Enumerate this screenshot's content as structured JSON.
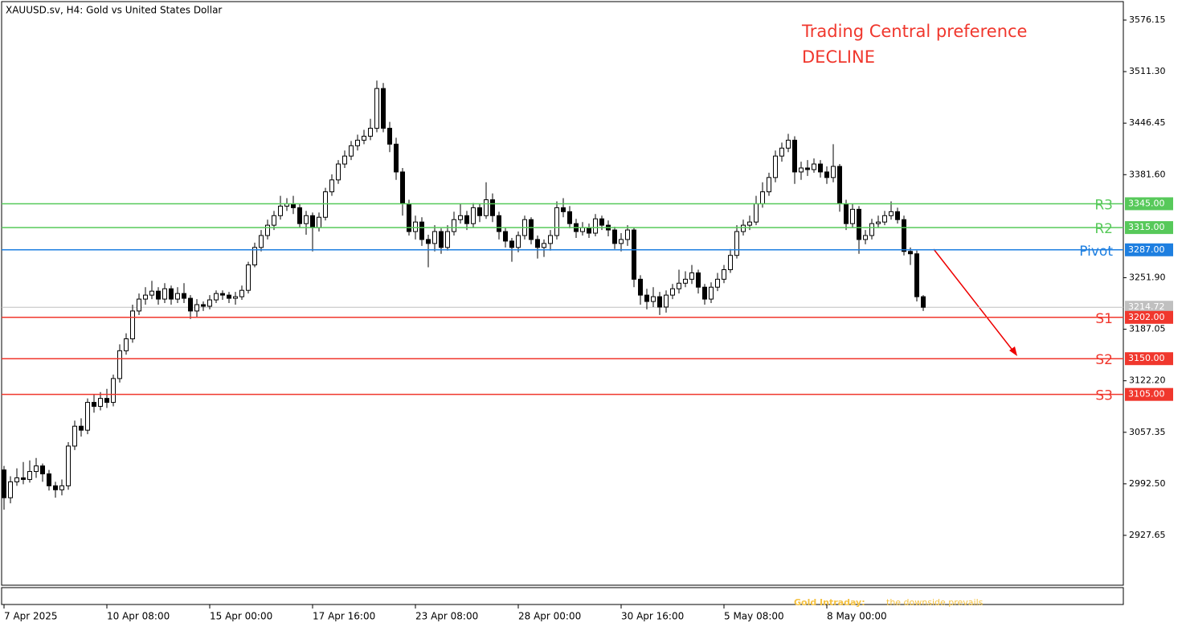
{
  "chart_data": {
    "type": "candlestick",
    "title": "XAUUSD.sv, H4:  Gold vs United States Dollar",
    "annotations": [
      "Trading Central preference",
      "DECLINE"
    ],
    "footer": [
      "Gold Intraday:",
      "the downside prevails"
    ],
    "categories": [
      "7 Apr 2025",
      null,
      null,
      null,
      null,
      null,
      null,
      null,
      null,
      null,
      null,
      null,
      null,
      null,
      null,
      null,
      "10 Apr 08:00",
      null,
      null,
      null,
      null,
      null,
      null,
      null,
      null,
      null,
      null,
      null,
      null,
      null,
      null,
      null,
      "15 Apr 00:00",
      null,
      null,
      null,
      null,
      null,
      null,
      null,
      null,
      null,
      null,
      null,
      null,
      null,
      null,
      null,
      "17 Apr 16:00",
      null,
      null,
      null,
      null,
      null,
      null,
      null,
      null,
      null,
      null,
      null,
      null,
      null,
      null,
      null,
      "23 Apr 08:00",
      null,
      null,
      null,
      null,
      null,
      null,
      null,
      null,
      null,
      null,
      null,
      null,
      null,
      null,
      null,
      "28 Apr 00:00",
      null,
      null,
      null,
      null,
      null,
      null,
      null,
      null,
      null,
      null,
      null,
      null,
      null,
      null,
      null,
      "30 Apr 16:00",
      null,
      null,
      null,
      null,
      null,
      null,
      null,
      null,
      null,
      null,
      null,
      null,
      null,
      null,
      null,
      "5 May 08:00",
      null,
      null,
      null,
      null,
      null,
      null,
      null,
      null,
      null,
      null,
      null,
      null,
      null,
      null,
      null,
      "8 May 00:00",
      null,
      null,
      null,
      null,
      null,
      null,
      null,
      null,
      null,
      null,
      null,
      null,
      null,
      null,
      null
    ],
    "open": [
      3010,
      2975,
      2995,
      3000,
      2998,
      3008,
      3015,
      3005,
      2990,
      2985,
      2990,
      3040,
      3065,
      3060,
      3095,
      3090,
      3100,
      3095,
      3125,
      3160,
      3175,
      3210,
      3225,
      3230,
      3235,
      3225,
      3238,
      3225,
      3232,
      3226,
      3210,
      3218,
      3216,
      3224,
      3232,
      3230,
      3226,
      3228,
      3236,
      3268,
      3290,
      3305,
      3318,
      3330,
      3342,
      3345,
      3340,
      3320,
      3330,
      3315,
      3328,
      3360,
      3375,
      3395,
      3405,
      3418,
      3425,
      3430,
      3440,
      3490,
      3440,
      3420,
      3385,
      3345,
      3310,
      3322,
      3300,
      3295,
      3310,
      3290,
      3310,
      3325,
      3330,
      3320,
      3340,
      3330,
      3350,
      3330,
      3310,
      3298,
      3290,
      3305,
      3325,
      3300,
      3290,
      3295,
      3305,
      3340,
      3335,
      3320,
      3310,
      3315,
      3308,
      3326,
      3318,
      3312,
      3295,
      3300,
      3312,
      3250,
      3230,
      3222,
      3228,
      3215,
      3230,
      3238,
      3245,
      3250,
      3258,
      3240,
      3225,
      3240,
      3250,
      3262,
      3280,
      3310,
      3318,
      3322,
      3345,
      3360,
      3378,
      3405,
      3415,
      3425,
      3385,
      3390,
      3388,
      3395,
      3385,
      3378,
      3392,
      3345,
      3320,
      3338,
      3300,
      3305,
      3320,
      3322,
      3330,
      3335,
      3325,
      3285,
      3282,
      3228
    ],
    "high": [
      3015,
      3002,
      3012,
      3020,
      3022,
      3025,
      3018,
      3010,
      2995,
      2998,
      3045,
      3072,
      3075,
      3100,
      3105,
      3108,
      3112,
      3130,
      3168,
      3182,
      3218,
      3232,
      3240,
      3248,
      3240,
      3245,
      3242,
      3240,
      3245,
      3230,
      3225,
      3222,
      3230,
      3236,
      3236,
      3234,
      3234,
      3242,
      3272,
      3296,
      3312,
      3325,
      3336,
      3355,
      3352,
      3355,
      3345,
      3336,
      3334,
      3334,
      3365,
      3382,
      3400,
      3412,
      3424,
      3432,
      3438,
      3452,
      3500,
      3497,
      3448,
      3428,
      3390,
      3350,
      3330,
      3328,
      3306,
      3318,
      3314,
      3318,
      3335,
      3345,
      3336,
      3346,
      3345,
      3372,
      3358,
      3335,
      3315,
      3302,
      3310,
      3330,
      3328,
      3305,
      3300,
      3312,
      3348,
      3352,
      3342,
      3326,
      3322,
      3320,
      3332,
      3330,
      3324,
      3316,
      3308,
      3318,
      3315,
      3255,
      3238,
      3240,
      3234,
      3236,
      3244,
      3262,
      3260,
      3268,
      3262,
      3244,
      3246,
      3258,
      3268,
      3288,
      3318,
      3325,
      3330,
      3355,
      3372,
      3384,
      3412,
      3422,
      3433,
      3430,
      3398,
      3400,
      3402,
      3400,
      3392,
      3420,
      3395,
      3350,
      3345,
      3342,
      3312,
      3326,
      3330,
      3336,
      3348,
      3340,
      3330,
      3290,
      3286,
      3230
    ],
    "low": [
      2960,
      2968,
      2990,
      2992,
      2994,
      3000,
      2995,
      2984,
      2975,
      2978,
      2985,
      3035,
      3052,
      3055,
      3082,
      3085,
      3088,
      3090,
      3120,
      3155,
      3170,
      3205,
      3218,
      3225,
      3218,
      3220,
      3218,
      3220,
      3220,
      3200,
      3202,
      3210,
      3212,
      3220,
      3224,
      3220,
      3218,
      3224,
      3232,
      3265,
      3285,
      3300,
      3312,
      3325,
      3336,
      3332,
      3315,
      3306,
      3285,
      3310,
      3324,
      3355,
      3370,
      3390,
      3400,
      3412,
      3420,
      3425,
      3435,
      3435,
      3410,
      3375,
      3330,
      3305,
      3300,
      3292,
      3265,
      3285,
      3282,
      3286,
      3305,
      3320,
      3312,
      3315,
      3322,
      3326,
      3322,
      3300,
      3290,
      3272,
      3284,
      3300,
      3294,
      3276,
      3278,
      3286,
      3300,
      3328,
      3314,
      3302,
      3305,
      3302,
      3304,
      3312,
      3304,
      3288,
      3285,
      3292,
      3240,
      3218,
      3212,
      3215,
      3205,
      3208,
      3225,
      3232,
      3240,
      3244,
      3232,
      3218,
      3220,
      3235,
      3245,
      3258,
      3276,
      3305,
      3312,
      3318,
      3340,
      3355,
      3372,
      3398,
      3410,
      3370,
      3375,
      3380,
      3384,
      3378,
      3370,
      3372,
      3335,
      3312,
      3315,
      3282,
      3294,
      3300,
      3315,
      3318,
      3325,
      3320,
      3280,
      3268,
      3222,
      3210
    ],
    "close": [
      2975,
      2995,
      3000,
      2998,
      3008,
      3015,
      3005,
      2990,
      2985,
      2990,
      3040,
      3065,
      3060,
      3095,
      3090,
      3100,
      3095,
      3125,
      3160,
      3175,
      3210,
      3225,
      3230,
      3235,
      3225,
      3238,
      3225,
      3232,
      3226,
      3210,
      3218,
      3216,
      3224,
      3232,
      3230,
      3226,
      3228,
      3236,
      3268,
      3290,
      3305,
      3318,
      3330,
      3342,
      3345,
      3340,
      3320,
      3330,
      3315,
      3328,
      3360,
      3375,
      3395,
      3405,
      3418,
      3425,
      3430,
      3440,
      3490,
      3440,
      3420,
      3385,
      3345,
      3310,
      3322,
      3300,
      3295,
      3310,
      3290,
      3310,
      3325,
      3330,
      3320,
      3340,
      3330,
      3350,
      3330,
      3310,
      3298,
      3290,
      3305,
      3325,
      3300,
      3290,
      3295,
      3305,
      3340,
      3335,
      3320,
      3310,
      3315,
      3308,
      3326,
      3318,
      3312,
      3295,
      3300,
      3312,
      3250,
      3230,
      3222,
      3228,
      3215,
      3230,
      3238,
      3245,
      3250,
      3258,
      3240,
      3225,
      3240,
      3250,
      3262,
      3280,
      3310,
      3318,
      3322,
      3345,
      3360,
      3378,
      3405,
      3415,
      3425,
      3385,
      3390,
      3388,
      3395,
      3385,
      3378,
      3392,
      3345,
      3320,
      3338,
      3300,
      3305,
      3320,
      3322,
      3330,
      3335,
      3325,
      3285,
      3282,
      3228,
      3214.72
    ],
    "ylim": [
      2864.9,
      3599.4
    ],
    "yticks": [
      3576.15,
      {
        "value": 3511.3,
        "label": "3511.30"
      },
      3446.45,
      {
        "value": 3381.6,
        "label": "3381.60"
      },
      {
        "value": 3251.9,
        "label": "3251.90"
      },
      3187.05,
      {
        "value": 3122.2,
        "label": "3122.20"
      },
      3057.35,
      {
        "value": 2992.5,
        "label": "2992.50"
      },
      2927.65
    ],
    "last_price": 3214.72,
    "levels": [
      {
        "name": "R3",
        "value": 3345,
        "label": "3345.00",
        "color": "#57c95a"
      },
      {
        "name": "R2",
        "value": 3315,
        "label": "3315.00",
        "color": "#57c95a"
      },
      {
        "name": "Pivot",
        "value": 3287,
        "label": "3287.00",
        "color": "#1e7fe0"
      },
      {
        "name": "S1",
        "value": 3202,
        "label": "3202.00",
        "color": "#f0372d"
      },
      {
        "name": "S2",
        "value": 3150,
        "label": "3150.00",
        "color": "#f0372d"
      },
      {
        "name": "S3",
        "value": 3105,
        "label": "3105.00",
        "color": "#f0372d"
      }
    ]
  }
}
